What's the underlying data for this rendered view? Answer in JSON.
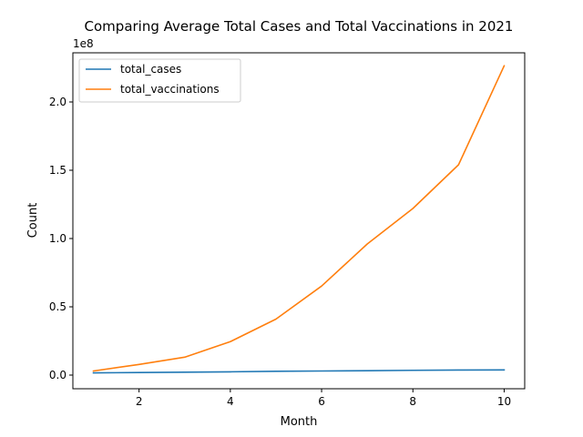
{
  "chart_data": {
    "type": "line",
    "title": "Comparing Average Total Cases and Total Vaccinations in 2021",
    "xlabel": "Month",
    "ylabel": "Count",
    "y_offset_label": "1e8",
    "xlim": [
      0.55,
      10.45
    ],
    "ylim": [
      -0.1,
      2.36
    ],
    "x_ticks": [
      2,
      4,
      6,
      8,
      10
    ],
    "x_tick_labels": [
      "2",
      "4",
      "6",
      "8",
      "10"
    ],
    "y_ticks": [
      0.0,
      0.5,
      1.0,
      1.5,
      2.0
    ],
    "y_tick_labels": [
      "0.0",
      "0.5",
      "1.0",
      "1.5",
      "2.0"
    ],
    "legend_position": "top-left",
    "grid": false,
    "x": [
      1,
      2,
      3,
      4,
      5,
      6,
      7,
      8,
      9,
      10
    ],
    "series": [
      {
        "name": "total_cases",
        "color": "#1f77b4",
        "values": [
          0.016,
          0.019,
          0.021,
          0.024,
          0.028,
          0.03,
          0.032,
          0.035,
          0.037,
          0.038
        ]
      },
      {
        "name": "total_vaccinations",
        "color": "#ff7f0e",
        "values": [
          0.03,
          0.078,
          0.131,
          0.245,
          0.41,
          0.652,
          0.96,
          1.22,
          1.54,
          2.265
        ]
      }
    ]
  }
}
